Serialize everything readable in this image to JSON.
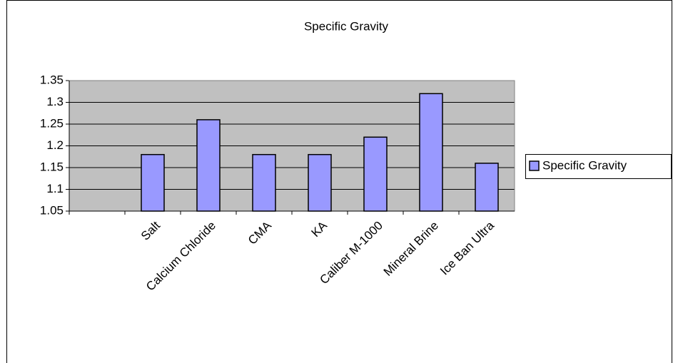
{
  "chart_data": {
    "type": "bar",
    "title": "Specific Gravity",
    "categories": [
      null,
      "Salt",
      "Calcium Chloride",
      "CMA",
      "KA",
      "Caliber M-1000",
      "Mineral Brine",
      "Ice Ban Ultra"
    ],
    "series": [
      {
        "name": "Specific Gravity",
        "color": "#9999ff",
        "values": [
          null,
          1.18,
          1.26,
          1.18,
          1.18,
          1.22,
          1.32,
          1.16
        ]
      }
    ],
    "ylim": [
      1.05,
      1.35
    ],
    "yticks": [
      1.05,
      1.1,
      1.15,
      1.2,
      1.25,
      1.3,
      1.35
    ],
    "grid": true,
    "legend": "right"
  }
}
